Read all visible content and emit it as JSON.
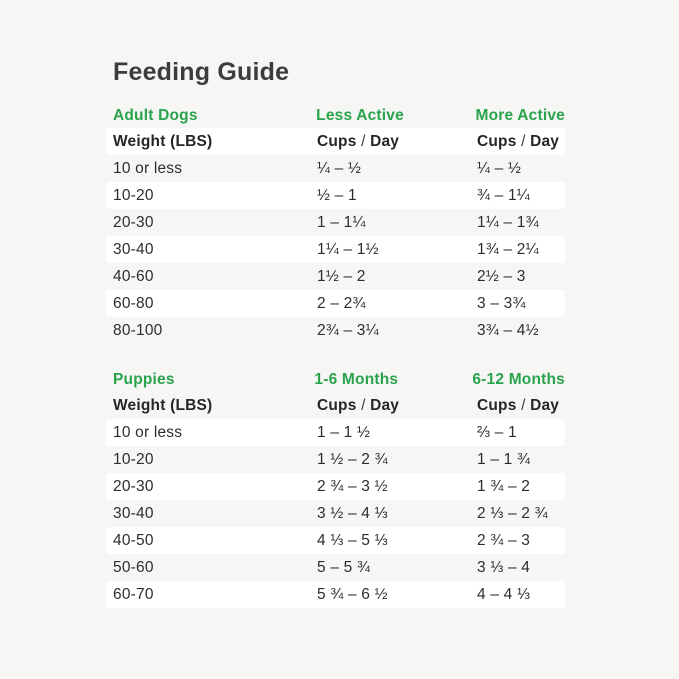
{
  "page": {
    "title": "Feeding Guide",
    "colors": {
      "background": "#f6f6f5",
      "row_highlight": "#ffffff",
      "accent_green": "#2aa34d",
      "title_text": "#3c3c3c",
      "body_text": "#2d2d2d"
    }
  },
  "tables": [
    {
      "id": "adult-dogs",
      "section_headers": [
        "Adult Dogs",
        "Less Active",
        "More Active"
      ],
      "column_headers": [
        [
          "Weight (LBS)"
        ],
        [
          "Cups",
          " / ",
          "Day"
        ],
        [
          "Cups",
          " / ",
          "Day"
        ]
      ],
      "header_row_white": true,
      "rows": [
        [
          "10 or less",
          "¼ – ½",
          "¼ – ½"
        ],
        [
          "10-20",
          "½ – 1",
          "¾ – 1¼"
        ],
        [
          "20-30",
          "1 – 1¼",
          "1¼ – 1¾"
        ],
        [
          "30-40",
          "1¼ – 1½",
          "1¾ – 2¼"
        ],
        [
          "40-60",
          "1½ – 2",
          "2½ – 3"
        ],
        [
          "60-80",
          "2 – 2¾",
          "3 – 3¾"
        ],
        [
          "80-100",
          "2¾ – 3¼",
          "3¾ – 4½"
        ]
      ]
    },
    {
      "id": "puppies",
      "section_headers": [
        "Puppies",
        "1-6 Months",
        "6-12 Months"
      ],
      "column_headers": [
        [
          "Weight (LBS)"
        ],
        [
          "Cups",
          " / ",
          "Day"
        ],
        [
          "Cups",
          " / ",
          "Day"
        ]
      ],
      "header_row_white": false,
      "rows": [
        [
          "10 or less",
          "1 – 1 ½",
          "⅔ – 1"
        ],
        [
          "10-20",
          "1 ½ – 2 ¾",
          "1 – 1 ¾"
        ],
        [
          "20-30",
          "2 ¾ – 3 ½",
          "1 ¾ – 2"
        ],
        [
          "30-40",
          "3 ½ – 4 ⅓",
          "2 ⅓ – 2 ¾"
        ],
        [
          "40-50",
          "4 ⅓ – 5 ⅓",
          "2 ¾ – 3"
        ],
        [
          "50-60",
          "5 – 5 ¾",
          "3 ⅓ – 4"
        ],
        [
          "60-70",
          "5 ¾ – 6 ½",
          "4 – 4 ⅓"
        ]
      ]
    }
  ]
}
